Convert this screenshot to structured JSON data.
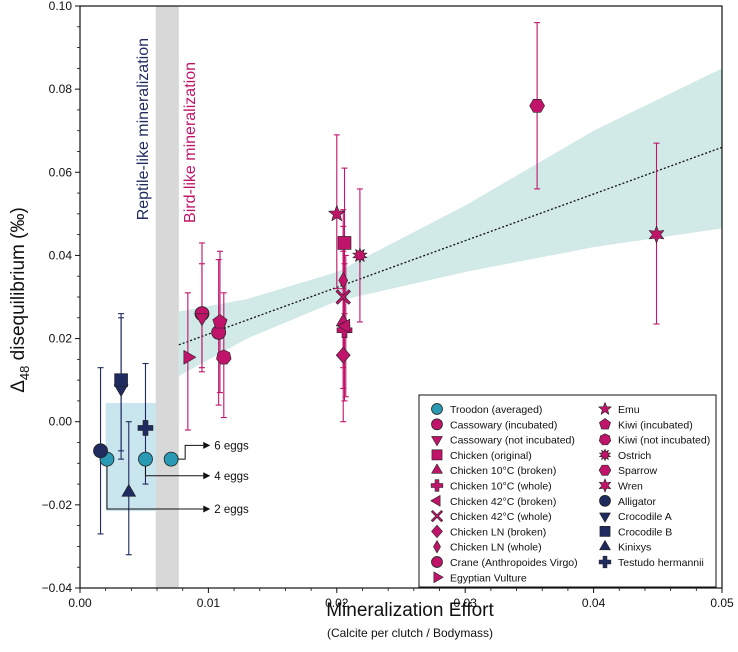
{
  "chart_data": {
    "type": "scatter",
    "xlabel": "Mineralization Effort",
    "xlabel_sub": "(Calcite per clutch / Bodymass)",
    "ylabel_main": "Δ",
    "ylabel_sub": "48",
    "ylabel_rest": " disequilibrium (‰)",
    "xlim": [
      0,
      0.05
    ],
    "ylim": [
      -0.04,
      0.1
    ],
    "xticks": [
      0,
      0.01,
      0.02,
      0.03,
      0.04,
      0.05
    ],
    "xtick_labels": [
      "0.00",
      "0.01",
      "0.02",
      "0.03",
      "0.04",
      "0.05"
    ],
    "yticks": [
      -0.04,
      -0.02,
      0,
      0.02,
      0.04,
      0.06,
      0.08,
      0.1
    ],
    "ytick_labels": [
      "−0.04",
      "−0.02",
      "0.00",
      "0.02",
      "0.04",
      "0.06",
      "0.08",
      "0.10"
    ],
    "grid": false,
    "legend_position": "bottom-right",
    "colors": {
      "bird": "#c0146a",
      "reptile": "#1f2a5e",
      "troodon": "#2a9ab4",
      "band": "#cfe8e6",
      "box": "#bfe0ea",
      "divider": "#d8d8d8"
    },
    "divider": {
      "x_from": 0.0059,
      "x_to": 0.0077
    },
    "region_labels": {
      "reptile": "Reptile-like mineralization",
      "bird": "Bird-like mineralization"
    },
    "troodon_box": {
      "x": [
        0.002,
        0.007
      ],
      "y": [
        -0.0215,
        0.0045
      ]
    },
    "regression": {
      "x": [
        0.0077,
        0.05
      ],
      "y": [
        0.0185,
        0.066
      ],
      "ci_upper": [
        [
          0.0077,
          0.0265
        ],
        [
          0.013,
          0.0295
        ],
        [
          0.02,
          0.036
        ],
        [
          0.03,
          0.052
        ],
        [
          0.04,
          0.07
        ],
        [
          0.05,
          0.085
        ]
      ],
      "ci_lower": [
        [
          0.0077,
          0.011
        ],
        [
          0.013,
          0.02
        ],
        [
          0.02,
          0.029
        ],
        [
          0.03,
          0.036
        ],
        [
          0.04,
          0.042
        ],
        [
          0.05,
          0.0465
        ]
      ]
    },
    "series": [
      {
        "name": "Troodon (averaged)",
        "group": "troodon",
        "marker": "circle",
        "points": [
          [
            0.0021,
            -0.009,
            -0.009,
            -0.009
          ],
          [
            0.0051,
            -0.009,
            -0.009,
            -0.009
          ],
          [
            0.0071,
            -0.009,
            -0.009,
            -0.009
          ]
        ]
      },
      {
        "name": "Cassowary (incubated)",
        "group": "bird",
        "marker": "circle",
        "points": [
          [
            0.0095,
            0.026,
            0.013,
            0.043
          ]
        ]
      },
      {
        "name": "Cassowary (not incubated)",
        "group": "bird",
        "marker": "triangle-down",
        "points": [
          [
            0.0095,
            0.025,
            0.012,
            0.038
          ]
        ]
      },
      {
        "name": "Chicken (original)",
        "group": "bird",
        "marker": "square",
        "points": [
          [
            0.0206,
            0.043,
            0.026,
            0.061
          ]
        ]
      },
      {
        "name": "Chicken 10°C (broken)",
        "group": "bird",
        "marker": "triangle-up",
        "points": [
          [
            0.0205,
            0.024,
            0.008,
            0.041
          ]
        ]
      },
      {
        "name": "Chicken 10°C (whole)",
        "group": "bird",
        "marker": "plus",
        "points": [
          [
            0.0206,
            0.022,
            0.005,
            0.038
          ]
        ]
      },
      {
        "name": "Chicken 42°C (broken)",
        "group": "bird",
        "marker": "triangle-left",
        "points": [
          [
            0.0207,
            0.023,
            0.006,
            0.04
          ]
        ]
      },
      {
        "name": "Chicken 42°C (whole)",
        "group": "bird",
        "marker": "x",
        "points": [
          [
            0.0205,
            0.03,
            0.013,
            0.047
          ]
        ]
      },
      {
        "name": "Chicken LN (broken)",
        "group": "bird",
        "marker": "diamond",
        "points": [
          [
            0.0205,
            0.016,
            0.0,
            0.032
          ]
        ]
      },
      {
        "name": "Chicken LN (whole)",
        "group": "bird",
        "marker": "thin-diamond",
        "points": [
          [
            0.0205,
            0.034,
            0.017,
            0.051
          ]
        ]
      },
      {
        "name": "Crane (Anthropoides Virgo)",
        "group": "bird",
        "marker": "circle",
        "points": [
          [
            0.0108,
            0.0215,
            0.004,
            0.039
          ]
        ]
      },
      {
        "name": "Egyptian Vulture",
        "group": "bird",
        "marker": "triangle-right",
        "points": [
          [
            0.0084,
            0.0155,
            -0.002,
            0.031
          ]
        ]
      },
      {
        "name": "Emu",
        "group": "bird",
        "marker": "star",
        "points": [
          [
            0.02,
            0.05,
            0.032,
            0.069
          ]
        ]
      },
      {
        "name": "Kiwi (incubated)",
        "group": "bird",
        "marker": "pentagon",
        "points": [
          [
            0.0109,
            0.024,
            0.007,
            0.041
          ]
        ]
      },
      {
        "name": "Kiwi (not incubated)",
        "group": "bird",
        "marker": "heptagon",
        "points": [
          [
            0.0112,
            0.0155,
            0.001,
            0.031
          ]
        ]
      },
      {
        "name": "Ostrich",
        "group": "bird",
        "marker": "starburst",
        "points": [
          [
            0.0218,
            0.04,
            0.024,
            0.056
          ]
        ]
      },
      {
        "name": "Sparrow",
        "group": "bird",
        "marker": "hexagon",
        "points": [
          [
            0.0356,
            0.076,
            0.056,
            0.096
          ]
        ]
      },
      {
        "name": "Wren",
        "group": "bird",
        "marker": "star6",
        "points": [
          [
            0.0449,
            0.045,
            0.0235,
            0.067
          ]
        ]
      },
      {
        "name": "Alligator",
        "group": "reptile",
        "marker": "circle",
        "points": [
          [
            0.0016,
            -0.007,
            -0.027,
            0.013
          ]
        ]
      },
      {
        "name": "Crocodile A",
        "group": "reptile",
        "marker": "triangle-down",
        "points": [
          [
            0.0032,
            0.008,
            -0.009,
            0.025
          ]
        ]
      },
      {
        "name": "Crocodile B",
        "group": "reptile",
        "marker": "square",
        "points": [
          [
            0.0032,
            0.01,
            -0.007,
            0.026
          ]
        ]
      },
      {
        "name": "Kinixys",
        "group": "reptile",
        "marker": "triangle-up",
        "points": [
          [
            0.0038,
            -0.017,
            -0.032,
            0.0
          ]
        ]
      },
      {
        "name": "Testudo hermannii",
        "group": "reptile",
        "marker": "plus",
        "points": [
          [
            0.0051,
            -0.0015,
            -0.015,
            0.014
          ]
        ]
      }
    ],
    "annotations": [
      {
        "text": "6 eggs",
        "from": [
          0.0071,
          -0.009
        ],
        "to": [
          0.0096,
          -0.0057
        ]
      },
      {
        "text": "4 eggs",
        "from": [
          0.0051,
          -0.009
        ],
        "to": [
          0.0096,
          -0.013
        ]
      },
      {
        "text": "2 eggs",
        "from": [
          0.0021,
          -0.009
        ],
        "to": [
          0.0096,
          -0.021
        ]
      }
    ]
  }
}
